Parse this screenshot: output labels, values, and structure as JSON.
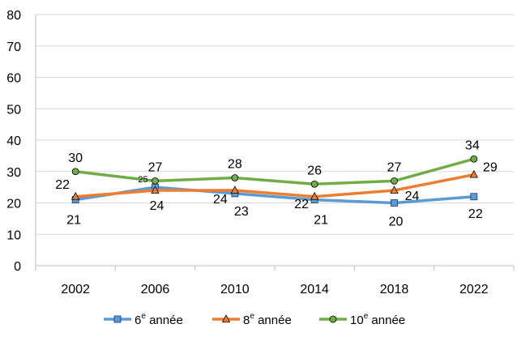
{
  "chart_data": {
    "type": "line",
    "categories": [
      "2002",
      "2006",
      "2010",
      "2014",
      "2018",
      "2022"
    ],
    "ylim": [
      0,
      80
    ],
    "yticks": [
      "0",
      "10",
      "20",
      "30",
      "40",
      "50",
      "60",
      "70",
      "80"
    ],
    "grid": "horizontal",
    "legend_position": "bottom",
    "series": [
      {
        "name": "6e année",
        "name_parts": [
          "6",
          "e",
          " année"
        ],
        "color": "#5B9BD5",
        "marker": "square",
        "values": [
          21,
          25,
          23,
          21,
          20,
          22
        ],
        "labels": [
          "21",
          "25",
          "23",
          "21",
          "20",
          "22"
        ]
      },
      {
        "name": "8e année",
        "name_parts": [
          "8",
          "e",
          " année"
        ],
        "color": "#ED7D31",
        "marker": "triangle",
        "values": [
          22,
          24,
          24,
          22,
          24,
          29
        ],
        "labels": [
          "22",
          "24",
          "24",
          "22",
          "24",
          "29"
        ]
      },
      {
        "name": "10e année",
        "name_parts": [
          "10",
          "e",
          " année"
        ],
        "color": "#70AD47",
        "marker": "circle",
        "values": [
          30,
          27,
          28,
          26,
          27,
          34
        ],
        "labels": [
          "30",
          "27",
          "28",
          "26",
          "27",
          "34"
        ]
      }
    ]
  }
}
